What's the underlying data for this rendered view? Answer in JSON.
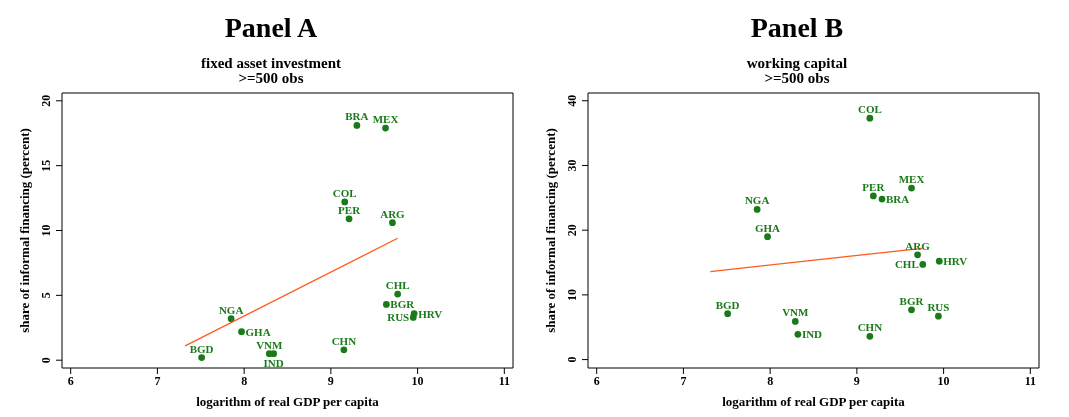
{
  "chart_data": [
    {
      "type": "scatter",
      "title": "Panel A",
      "subtitle": "fixed asset investment\n>=500 obs",
      "xlabel": "logarithm of real GDP per capita",
      "ylabel": "share of informal financing (percent)",
      "xlim": [
        5.9,
        11.1
      ],
      "xticks": [
        6,
        7,
        8,
        9,
        10,
        11
      ],
      "ylim": [
        -0.6,
        20.6
      ],
      "yticks": [
        0,
        5,
        10,
        15,
        20
      ],
      "marker": "circle",
      "series": [
        {
          "color": "#1a7a1a",
          "x": [
            9.3,
            9.63,
            9.16,
            9.21,
            9.71,
            9.77,
            9.64,
            9.96,
            9.95,
            7.85,
            7.97,
            9.15,
            7.51,
            8.29,
            8.34
          ],
          "values": [
            18.1,
            17.9,
            12.2,
            10.9,
            10.6,
            5.1,
            4.3,
            3.6,
            3.3,
            3.2,
            2.2,
            0.8,
            0.2,
            0.5,
            0.5
          ],
          "value_labels": [
            "BRA",
            "MEX",
            "COL",
            "PER",
            "ARG",
            "CHL",
            "BGR",
            "HRV",
            "RUS",
            "NGA",
            "GHA",
            "CHN",
            "BGD",
            "VNM",
            "IND"
          ]
        },
        {
          "type": "line",
          "marker": "none",
          "color": "#ff5a1f",
          "x": [
            7.32,
            9.77
          ],
          "values": [
            1.1,
            9.4
          ]
        }
      ]
    },
    {
      "type": "scatter",
      "title": "Panel B",
      "subtitle": "working capital\n>=500 obs",
      "xlabel": "logarithm of real GDP per capita",
      "ylabel": "share of informal financing (percent)",
      "xlim": [
        5.9,
        11.1
      ],
      "xticks": [
        6,
        7,
        8,
        9,
        10,
        11
      ],
      "ylim": [
        -1.3,
        41.2
      ],
      "yticks": [
        0,
        10,
        20,
        30,
        40
      ],
      "marker": "circle",
      "series": [
        {
          "color": "#1a7a1a",
          "x": [
            9.15,
            9.63,
            9.19,
            9.29,
            7.85,
            7.97,
            9.7,
            9.76,
            9.95,
            7.51,
            9.63,
            9.94,
            8.29,
            8.32,
            9.15
          ],
          "values": [
            37.3,
            26.5,
            25.3,
            24.8,
            23.2,
            19.0,
            16.2,
            14.7,
            15.2,
            7.1,
            7.7,
            6.7,
            5.9,
            3.9,
            3.6
          ],
          "value_labels": [
            "COL",
            "MEX",
            "PER",
            "BRA",
            "NGA",
            "GHA",
            "ARG",
            "CHL",
            "HRV",
            "BGD",
            "BGR",
            "RUS",
            "VNM",
            "IND",
            "CHN"
          ]
        },
        {
          "type": "line",
          "marker": "none",
          "color": "#ff5a1f",
          "x": [
            7.31,
            9.75
          ],
          "values": [
            13.6,
            17.2
          ]
        }
      ]
    }
  ]
}
